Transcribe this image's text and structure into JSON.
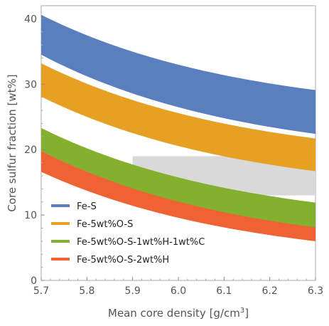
{
  "chart_data": {
    "type": "area",
    "xlabel": "Mean core density [g/cm",
    "xlabel_sup": "3",
    "xlabel_end": "]",
    "ylabel": "Core sulfur fraction [wt%]",
    "xlim": [
      5.7,
      6.3
    ],
    "ylim": [
      0,
      42
    ],
    "x_ticks": [
      "5.7",
      "5.8",
      "5.9",
      "6.0",
      "6.1",
      "6.2",
      "6.3"
    ],
    "y_ticks": [
      "0",
      "10",
      "20",
      "30",
      "40"
    ],
    "grid": false,
    "legend_position": "bottom-left",
    "shaded_region": {
      "x": [
        5.9,
        6.3
      ],
      "y": [
        13,
        19
      ],
      "color": "#d9d9d9"
    },
    "x": [
      5.7,
      6.3
    ],
    "series": [
      {
        "name": "Fe-S",
        "color": "#5a7fbf",
        "lower": [
          34.5,
          22.4
        ],
        "upper": [
          40.6,
          29.1
        ]
      },
      {
        "name": "Fe-5wt%O-S",
        "color": "#e6a023",
        "lower": [
          28.1,
          16.7
        ],
        "upper": [
          33.2,
          21.7
        ]
      },
      {
        "name": "Fe-5wt%O-S-1wt%H-1wt%C",
        "color": "#84b02f",
        "lower": [
          19.8,
          8.0
        ],
        "upper": [
          23.3,
          11.9
        ]
      },
      {
        "name": "Fe-5wt%O-S-2wt%H",
        "color": "#ef6233",
        "lower": [
          16.6,
          6.0
        ],
        "upper": [
          19.8,
          8.1
        ]
      }
    ]
  }
}
